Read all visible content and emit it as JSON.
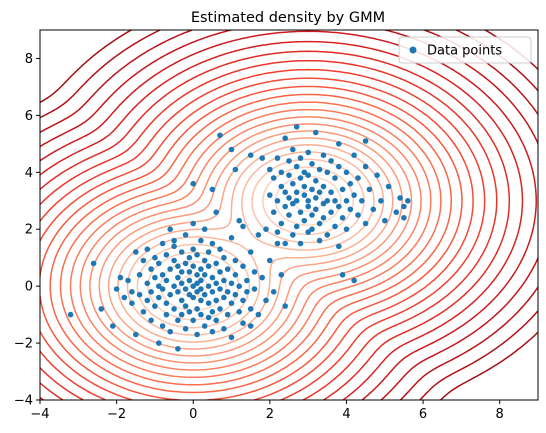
{
  "chart_data": {
    "type": "scatter",
    "title": "Estimated density by GMM",
    "xlabel": "",
    "ylabel": "",
    "xlim": [
      -4,
      9
    ],
    "ylim": [
      -4,
      9
    ],
    "xticks": [
      -4,
      -2,
      0,
      2,
      4,
      6,
      8
    ],
    "yticks": [
      -4,
      -2,
      0,
      2,
      4,
      6,
      8
    ],
    "grid": false,
    "legend": {
      "placement": "top-right"
    },
    "series": [
      {
        "name": "Data points",
        "color": "#1f77b4",
        "points": [
          [
            -3.2,
            -1.0
          ],
          [
            -2.6,
            0.8
          ],
          [
            -2.4,
            -0.8
          ],
          [
            -2.1,
            -1.4
          ],
          [
            -2.0,
            -0.1
          ],
          [
            -1.9,
            0.3
          ],
          [
            -1.8,
            -0.4
          ],
          [
            -1.7,
            0.2
          ],
          [
            -1.6,
            -0.2
          ],
          [
            -1.6,
            -0.6
          ],
          [
            -1.5,
            1.2
          ],
          [
            -1.5,
            -1.7
          ],
          [
            -1.4,
            0.4
          ],
          [
            -1.4,
            -0.3
          ],
          [
            -1.3,
            0.9
          ],
          [
            -1.3,
            -0.9
          ],
          [
            -1.2,
            1.3
          ],
          [
            -1.2,
            0.1
          ],
          [
            -1.2,
            -0.5
          ],
          [
            -1.1,
            0.6
          ],
          [
            -1.1,
            -0.2
          ],
          [
            -1.1,
            -1.2
          ],
          [
            -1.0,
            0.3
          ],
          [
            -1.0,
            -0.7
          ],
          [
            -1.0,
            1.0
          ],
          [
            -0.9,
            -2.0
          ],
          [
            -0.9,
            0.0
          ],
          [
            -0.9,
            -0.4
          ],
          [
            -0.9,
            0.8
          ],
          [
            -0.8,
            1.5
          ],
          [
            -0.8,
            -0.1
          ],
          [
            -0.8,
            -1.4
          ],
          [
            -0.8,
            0.4
          ],
          [
            -0.7,
            0.2
          ],
          [
            -0.7,
            -0.6
          ],
          [
            -0.7,
            -1.0
          ],
          [
            -0.7,
            1.1
          ],
          [
            -0.6,
            2.0
          ],
          [
            -0.6,
            -0.3
          ],
          [
            -0.6,
            0.6
          ],
          [
            -0.6,
            -1.6
          ],
          [
            -0.5,
            0.0
          ],
          [
            -0.5,
            -0.8
          ],
          [
            -0.5,
            0.9
          ],
          [
            -0.5,
            1.4
          ],
          [
            -0.4,
            -0.2
          ],
          [
            -0.4,
            0.3
          ],
          [
            -0.4,
            -1.2
          ],
          [
            -0.4,
            0.7
          ],
          [
            -0.4,
            -2.2
          ],
          [
            -0.3,
            -0.5
          ],
          [
            -0.3,
            0.1
          ],
          [
            -0.3,
            1.2
          ],
          [
            -0.3,
            -1.0
          ],
          [
            -0.3,
            0.5
          ],
          [
            -0.2,
            1.8
          ],
          [
            -0.2,
            -0.1
          ],
          [
            -0.2,
            -0.7
          ],
          [
            -0.2,
            0.8
          ],
          [
            -0.2,
            -1.5
          ],
          [
            -0.1,
            0.2
          ],
          [
            -0.1,
            -0.3
          ],
          [
            -0.1,
            1.0
          ],
          [
            -0.1,
            -0.9
          ],
          [
            -0.1,
            0.5
          ],
          [
            0.0,
            0.0
          ],
          [
            0.0,
            -0.4
          ],
          [
            0.0,
            1.3
          ],
          [
            0.0,
            -1.2
          ],
          [
            0.0,
            0.7
          ],
          [
            0.0,
            2.2
          ],
          [
            0.1,
            -0.2
          ],
          [
            0.1,
            0.4
          ],
          [
            0.1,
            -0.8
          ],
          [
            0.1,
            1.1
          ],
          [
            0.1,
            -1.7
          ],
          [
            0.1,
            0.1
          ],
          [
            0.2,
            -0.5
          ],
          [
            0.2,
            0.6
          ],
          [
            0.2,
            -1.0
          ],
          [
            0.2,
            1.6
          ],
          [
            0.2,
            0.2
          ],
          [
            0.2,
            -0.1
          ],
          [
            0.3,
            0.9
          ],
          [
            0.3,
            -0.3
          ],
          [
            0.3,
            -1.4
          ],
          [
            0.3,
            0.4
          ],
          [
            0.3,
            2.0
          ],
          [
            0.4,
            -0.6
          ],
          [
            0.4,
            0.0
          ],
          [
            0.4,
            1.2
          ],
          [
            0.4,
            -1.1
          ],
          [
            0.4,
            0.7
          ],
          [
            0.5,
            -0.2
          ],
          [
            0.5,
            0.3
          ],
          [
            0.5,
            -0.9
          ],
          [
            0.5,
            1.5
          ],
          [
            0.5,
            -1.6
          ],
          [
            0.6,
            0.1
          ],
          [
            0.6,
            -0.5
          ],
          [
            0.6,
            0.8
          ],
          [
            0.6,
            -1.2
          ],
          [
            0.6,
            2.6
          ],
          [
            0.7,
            -0.1
          ],
          [
            0.7,
            0.5
          ],
          [
            0.7,
            -0.8
          ],
          [
            0.7,
            1.3
          ],
          [
            0.8,
            0.2
          ],
          [
            0.8,
            -0.4
          ],
          [
            0.8,
            -1.5
          ],
          [
            0.8,
            1.0
          ],
          [
            0.9,
            -0.2
          ],
          [
            0.9,
            0.6
          ],
          [
            0.9,
            -1.0
          ],
          [
            1.0,
            0.1
          ],
          [
            1.0,
            -0.6
          ],
          [
            1.0,
            1.7
          ],
          [
            1.0,
            -1.8
          ],
          [
            1.1,
            0.4
          ],
          [
            1.1,
            -0.3
          ],
          [
            1.1,
            0.9
          ],
          [
            1.2,
            -0.9
          ],
          [
            1.2,
            0.0
          ],
          [
            1.2,
            2.3
          ],
          [
            1.3,
            -0.5
          ],
          [
            1.3,
            0.7
          ],
          [
            1.3,
            -1.3
          ],
          [
            1.4,
            0.2
          ],
          [
            1.4,
            -0.2
          ],
          [
            1.5,
            1.2
          ],
          [
            1.5,
            -0.8
          ],
          [
            1.6,
            0.5
          ],
          [
            1.6,
            -0.1
          ],
          [
            1.7,
            1.8
          ],
          [
            1.7,
            -1.0
          ],
          [
            1.8,
            0.3
          ],
          [
            1.9,
            -0.5
          ],
          [
            2.0,
            0.9
          ],
          [
            2.1,
            -0.2
          ],
          [
            2.2,
            1.5
          ],
          [
            2.3,
            0.4
          ],
          [
            2.4,
            -0.7
          ],
          [
            0.0,
            3.6
          ],
          [
            0.5,
            3.4
          ],
          [
            0.7,
            5.3
          ],
          [
            1.1,
            4.1
          ],
          [
            1.5,
            4.6
          ],
          [
            1.8,
            4.5
          ],
          [
            -0.5,
            1.6
          ],
          [
            1.3,
            2.1
          ],
          [
            1.9,
            2.0
          ],
          [
            2.0,
            3.2
          ],
          [
            2.0,
            4.1
          ],
          [
            2.1,
            2.6
          ],
          [
            2.1,
            3.8
          ],
          [
            2.2,
            3.0
          ],
          [
            2.2,
            4.5
          ],
          [
            2.2,
            1.9
          ],
          [
            2.3,
            3.5
          ],
          [
            2.3,
            2.2
          ],
          [
            2.3,
            4.0
          ],
          [
            2.4,
            2.8
          ],
          [
            2.4,
            3.3
          ],
          [
            2.4,
            1.5
          ],
          [
            2.4,
            5.2
          ],
          [
            2.5,
            3.9
          ],
          [
            2.5,
            2.5
          ],
          [
            2.5,
            4.4
          ],
          [
            2.5,
            3.1
          ],
          [
            2.6,
            1.8
          ],
          [
            2.6,
            3.6
          ],
          [
            2.6,
            2.9
          ],
          [
            2.6,
            4.8
          ],
          [
            2.7,
            3.3
          ],
          [
            2.7,
            2.1
          ],
          [
            2.7,
            4.2
          ],
          [
            2.7,
            3.0
          ],
          [
            2.8,
            2.6
          ],
          [
            2.8,
            3.8
          ],
          [
            2.8,
            1.5
          ],
          [
            2.8,
            4.5
          ],
          [
            2.9,
            3.2
          ],
          [
            2.9,
            2.3
          ],
          [
            2.9,
            4.0
          ],
          [
            2.9,
            3.5
          ],
          [
            3.0,
            2.8
          ],
          [
            3.0,
            4.7
          ],
          [
            3.0,
            3.0
          ],
          [
            3.0,
            1.9
          ],
          [
            3.0,
            3.9
          ],
          [
            3.1,
            2.5
          ],
          [
            3.1,
            3.4
          ],
          [
            3.1,
            4.3
          ],
          [
            3.1,
            2.0
          ],
          [
            3.2,
            3.1
          ],
          [
            3.2,
            5.4
          ],
          [
            3.2,
            2.7
          ],
          [
            3.2,
            3.7
          ],
          [
            3.3,
            2.2
          ],
          [
            3.3,
            4.1
          ],
          [
            3.3,
            3.3
          ],
          [
            3.3,
            1.6
          ],
          [
            3.4,
            2.9
          ],
          [
            3.4,
            4.6
          ],
          [
            3.4,
            3.5
          ],
          [
            3.4,
            2.4
          ],
          [
            3.5,
            3.0
          ],
          [
            3.5,
            4.0
          ],
          [
            3.5,
            1.8
          ],
          [
            3.6,
            3.3
          ],
          [
            3.6,
            2.6
          ],
          [
            3.6,
            4.4
          ],
          [
            3.7,
            3.0
          ],
          [
            3.7,
            2.1
          ],
          [
            3.7,
            3.8
          ],
          [
            3.8,
            2.8
          ],
          [
            3.8,
            4.2
          ],
          [
            3.8,
            1.4
          ],
          [
            3.9,
            3.4
          ],
          [
            3.9,
            2.4
          ],
          [
            4.0,
            3.0
          ],
          [
            4.0,
            4.0
          ],
          [
            4.0,
            2.0
          ],
          [
            4.1,
            3.6
          ],
          [
            4.1,
            2.7
          ],
          [
            4.2,
            3.2
          ],
          [
            4.2,
            4.6
          ],
          [
            4.3,
            2.5
          ],
          [
            4.3,
            3.8
          ],
          [
            4.4,
            3.0
          ],
          [
            4.5,
            2.2
          ],
          [
            4.5,
            4.2
          ],
          [
            4.6,
            3.4
          ],
          [
            4.7,
            2.7
          ],
          [
            4.8,
            3.9
          ],
          [
            4.9,
            3.0
          ],
          [
            5.0,
            2.3
          ],
          [
            5.1,
            3.5
          ],
          [
            5.3,
            2.6
          ],
          [
            5.4,
            3.1
          ],
          [
            5.5,
            2.8
          ],
          [
            5.6,
            3.0
          ],
          [
            5.5,
            2.4
          ],
          [
            3.8,
            5.0
          ],
          [
            4.5,
            5.1
          ],
          [
            3.9,
            0.4
          ],
          [
            4.2,
            0.2
          ],
          [
            1.0,
            4.8
          ],
          [
            2.7,
            5.6
          ],
          [
            1.5,
            -1.4
          ]
        ]
      }
    ],
    "contours": {
      "colormap": "Reds",
      "components": [
        {
          "weight": 0.5,
          "mean": [
            0.0,
            0.0
          ],
          "sigma": [
            1.0,
            1.0
          ]
        },
        {
          "weight": 0.5,
          "mean": [
            3.0,
            3.0
          ],
          "sigma": [
            1.0,
            1.0
          ]
        }
      ]
    }
  }
}
